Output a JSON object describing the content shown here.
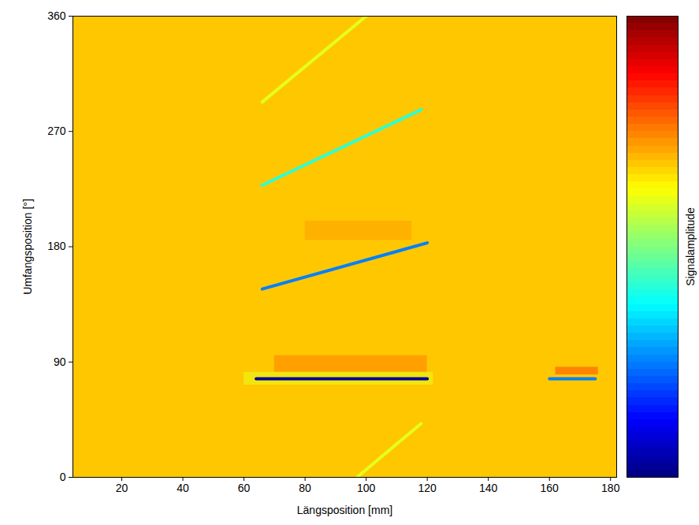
{
  "chart_data": {
    "type": "heatmap",
    "xlabel": "Längsposition [mm]",
    "ylabel": "Umfangsposition [°]",
    "xlim": [
      4,
      182
    ],
    "ylim": [
      0,
      360
    ],
    "xticks": [
      20,
      40,
      60,
      80,
      100,
      120,
      140,
      160,
      180
    ],
    "yticks": [
      0,
      90,
      180,
      270,
      360
    ],
    "colorbar": {
      "label": "Signalamplitude",
      "range": [
        0,
        1
      ],
      "ticks": []
    },
    "background_amplitude": 0.68,
    "regions": [
      {
        "x1": 70,
        "x2": 120,
        "y1": 82,
        "y2": 95,
        "amplitude": 0.75
      },
      {
        "x1": 162,
        "x2": 176,
        "y1": 80,
        "y2": 86,
        "amplitude": 0.8
      },
      {
        "x1": 80,
        "x2": 115,
        "y1": 185,
        "y2": 200,
        "amplitude": 0.72
      },
      {
        "x1": 60,
        "x2": 122,
        "y1": 72,
        "y2": 82,
        "amplitude": 0.6
      }
    ],
    "traces": [
      {
        "x1": 66,
        "y1": 293,
        "x2": 100,
        "y2": 360,
        "amplitude": 0.6
      },
      {
        "x1": 97,
        "y1": 0,
        "x2": 118,
        "y2": 42,
        "amplitude": 0.6
      },
      {
        "x1": 66,
        "y1": 228,
        "x2": 118,
        "y2": 287,
        "amplitude": 0.42
      },
      {
        "x1": 66,
        "y1": 147,
        "x2": 120,
        "y2": 183,
        "amplitude": 0.25
      },
      {
        "x1": 64,
        "y1": 77,
        "x2": 120,
        "y2": 77,
        "amplitude": 0.03
      },
      {
        "x1": 160,
        "y1": 77,
        "x2": 175,
        "y2": 77,
        "amplitude": 0.25
      }
    ]
  }
}
